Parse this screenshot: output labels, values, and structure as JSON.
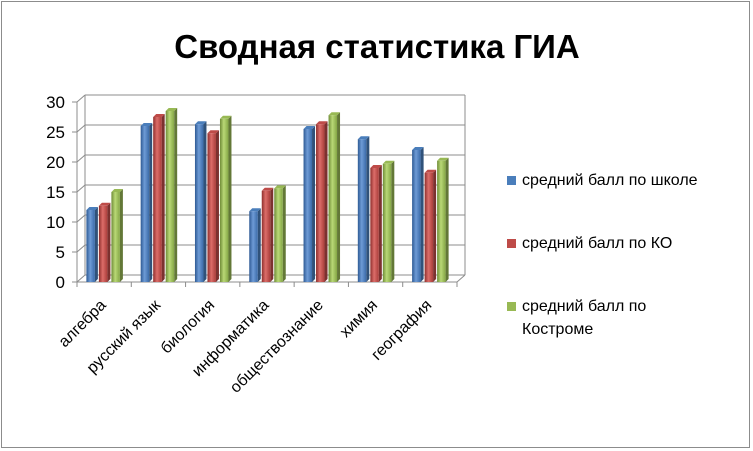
{
  "chart_data": {
    "type": "bar",
    "title": "Сводная статистика ГИА",
    "categories": [
      "алгебра",
      "русский язык",
      "биология",
      "информатика",
      "обществознание",
      "химия",
      "география"
    ],
    "series": [
      {
        "name": "средний балл по школе",
        "color": "#4a7ebb",
        "values": [
          12,
          26,
          26.3,
          11.8,
          25.5,
          23.8,
          22
        ]
      },
      {
        "name": "средний  балл по КО",
        "color": "#be4b48",
        "values": [
          12.7,
          27.5,
          24.8,
          15.2,
          26.3,
          19,
          18.2
        ]
      },
      {
        "name": "средний балл по Костроме",
        "color": "#98b954",
        "values": [
          15,
          28.5,
          27.2,
          15.6,
          27.8,
          19.7,
          20.2
        ]
      }
    ],
    "legend_lines": [
      [
        "средний балл по школе"
      ],
      [
        "средний  балл по КО"
      ],
      [
        "средний балл по",
        "Костроме"
      ]
    ],
    "y_ticks": [
      "0",
      "5",
      "10",
      "15",
      "20",
      "25",
      "30"
    ],
    "ylim": [
      0,
      30
    ],
    "grid": true,
    "legend_position": "right"
  }
}
